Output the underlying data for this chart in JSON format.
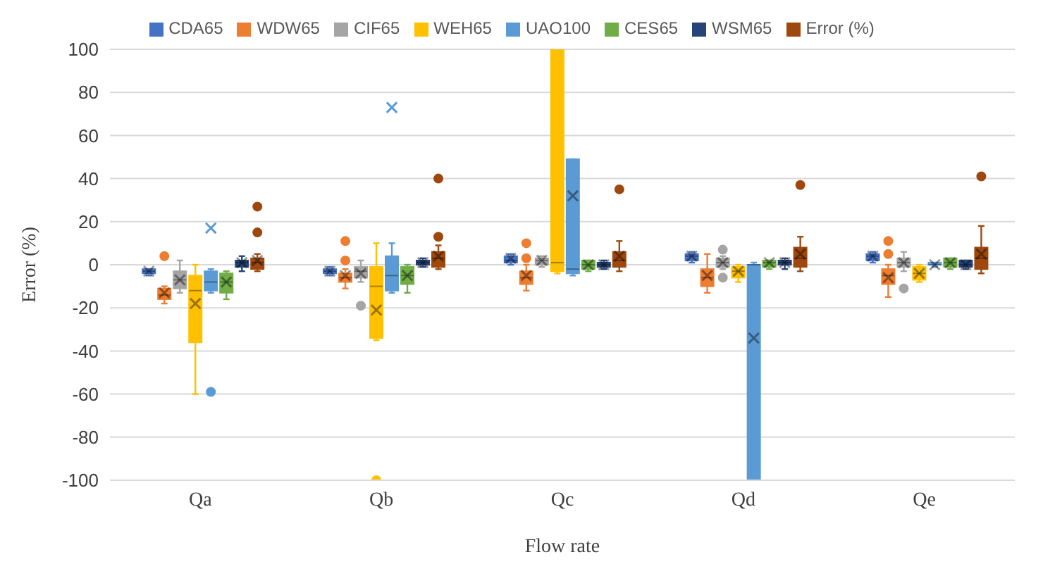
{
  "chart_data": {
    "type": "box",
    "xlabel": "Flow rate",
    "ylabel": "Error (%)",
    "categories": [
      "Qa",
      "Qb",
      "Qc",
      "Qd",
      "Qe"
    ],
    "ylim": [
      -100,
      100
    ],
    "yticks": [
      -100,
      -80,
      -60,
      -40,
      -20,
      0,
      20,
      40,
      60,
      80,
      100
    ],
    "grid": "y",
    "legend": "top",
    "series": [
      {
        "name": "CDA65",
        "color": "#4472c4",
        "boxes": [
          {
            "low": -5,
            "q1": -4,
            "median": -3,
            "q3": -2,
            "high": -2,
            "mean": -3
          },
          {
            "low": -5,
            "q1": -4,
            "median": -3,
            "q3": -2,
            "high": -1,
            "mean": -3
          },
          {
            "low": 0,
            "q1": 1,
            "median": 2,
            "q3": 4,
            "high": 5,
            "mean": 3
          },
          {
            "low": 1,
            "q1": 2,
            "median": 4,
            "q3": 5,
            "high": 6,
            "mean": 4
          },
          {
            "low": 1,
            "q1": 2,
            "median": 4,
            "q3": 5,
            "high": 6,
            "mean": 4
          }
        ]
      },
      {
        "name": "WDW65",
        "color": "#ed7d31",
        "boxes": [
          {
            "low": -18,
            "q1": -16,
            "median": -14,
            "q3": -11,
            "high": -10,
            "mean": -13,
            "outliers": [
              4
            ]
          },
          {
            "low": -11,
            "q1": -8,
            "median": -6,
            "q3": -4,
            "high": -2,
            "mean": -5,
            "outliers": [
              2,
              11
            ]
          },
          {
            "low": -12,
            "q1": -9,
            "median": -6,
            "q3": -3,
            "high": 0,
            "mean": -5,
            "outliers": [
              3,
              10
            ]
          },
          {
            "low": -13,
            "q1": -10,
            "median": -6,
            "q3": -2,
            "high": 5,
            "mean": -5
          },
          {
            "low": -15,
            "q1": -9,
            "median": -5,
            "q3": -2,
            "high": 0,
            "mean": -6,
            "outliers": [
              5,
              11
            ]
          }
        ]
      },
      {
        "name": "CIF65",
        "color": "#a5a5a5",
        "boxes": [
          {
            "low": -13,
            "q1": -11,
            "median": -7,
            "q3": -3,
            "high": 2,
            "mean": -7
          },
          {
            "low": -8,
            "q1": -6,
            "median": -3,
            "q3": -1,
            "high": 2,
            "mean": -4,
            "outliers": [
              -19
            ]
          },
          {
            "low": -1,
            "q1": 0,
            "median": 2,
            "q3": 3,
            "high": 4,
            "mean": 2
          },
          {
            "low": -2,
            "q1": -1,
            "median": 1,
            "q3": 3,
            "high": 4,
            "mean": 1,
            "outliers": [
              -6,
              7
            ]
          },
          {
            "low": -3,
            "q1": -1,
            "median": 1,
            "q3": 3,
            "high": 6,
            "mean": 1,
            "outliers": [
              -11
            ]
          }
        ]
      },
      {
        "name": "WEH65",
        "color": "#ffc000",
        "boxes": [
          {
            "low": -60,
            "q1": -36,
            "median": -12,
            "q3": -5,
            "high": 0,
            "mean": -18
          },
          {
            "low": -35,
            "q1": -34,
            "median": -10,
            "q3": -1,
            "high": 10,
            "mean": -21,
            "outliers": [
              -100
            ]
          },
          {
            "low": -4,
            "q1": -3,
            "median": 1,
            "q3": 100,
            "high": 100
          },
          {
            "low": -8,
            "q1": -6,
            "median": -3,
            "q3": -1,
            "high": 0,
            "mean": -3
          },
          {
            "low": -8,
            "q1": -7,
            "median": -4,
            "q3": -1,
            "high": 0,
            "mean": -4
          }
        ]
      },
      {
        "name": "UAO100",
        "color": "#5b9bd5",
        "boxes": [
          {
            "low": -13,
            "q1": -12,
            "median": -8,
            "q3": -3,
            "high": -2,
            "mean": 17,
            "outliers": [
              -59
            ]
          },
          {
            "low": -13,
            "q1": -12,
            "median": -5,
            "q3": 4,
            "high": 10,
            "mean": 73
          },
          {
            "low": -5,
            "q1": -4,
            "median": -2,
            "q3": 49,
            "high": 49,
            "mean": 32
          },
          {
            "low": -100,
            "q1": -100,
            "median": 0,
            "q3": 0,
            "high": 1,
            "mean": -34
          },
          {
            "low": -1,
            "q1": 0,
            "median": 0,
            "q3": 1,
            "high": 1,
            "mean": 0
          }
        ]
      },
      {
        "name": "CES65",
        "color": "#70ad47",
        "boxes": [
          {
            "low": -16,
            "q1": -13,
            "median": -8,
            "q3": -4,
            "high": -3,
            "mean": -8
          },
          {
            "low": -13,
            "q1": -9,
            "median": -5,
            "q3": -1,
            "high": 0,
            "mean": -5
          },
          {
            "low": -3,
            "q1": -2,
            "median": 0,
            "q3": 2,
            "high": 2,
            "mean": 0
          },
          {
            "low": -2,
            "q1": -1,
            "median": 1,
            "q3": 2,
            "high": 2,
            "mean": 1
          },
          {
            "low": -2,
            "q1": -1,
            "median": 1,
            "q3": 3,
            "high": 3,
            "mean": 1
          }
        ]
      },
      {
        "name": "WSM65",
        "color": "#264478",
        "boxes": [
          {
            "low": -3,
            "q1": -1,
            "median": 1,
            "q3": 2,
            "high": 4,
            "mean": 1
          },
          {
            "low": -1,
            "q1": 0,
            "median": 1,
            "q3": 2,
            "high": 3,
            "mean": 1
          },
          {
            "low": -2,
            "q1": -1,
            "median": 0,
            "q3": 1,
            "high": 2,
            "mean": 0
          },
          {
            "low": -2,
            "q1": 0,
            "median": 1,
            "q3": 2,
            "high": 3,
            "mean": 1
          },
          {
            "low": -2,
            "q1": -1,
            "median": 0,
            "q3": 2,
            "high": 2,
            "mean": 0
          }
        ]
      },
      {
        "name": "Error (%)",
        "color": "#9e480e",
        "boxes": [
          {
            "low": -3,
            "q1": -2,
            "median": 1,
            "q3": 3,
            "high": 5,
            "mean": 2,
            "outliers": [
              15,
              27
            ]
          },
          {
            "low": -2,
            "q1": -1,
            "median": 3,
            "q3": 6,
            "high": 9,
            "mean": 4,
            "outliers": [
              13,
              40
            ]
          },
          {
            "low": -3,
            "q1": -1,
            "median": 2,
            "q3": 6,
            "high": 11,
            "mean": 4,
            "outliers": [
              35
            ]
          },
          {
            "low": -3,
            "q1": -1,
            "median": 3,
            "q3": 8,
            "high": 13,
            "mean": 5,
            "outliers": [
              37
            ]
          },
          {
            "low": -4,
            "q1": -2,
            "median": 3,
            "q3": 8,
            "high": 18,
            "mean": 5,
            "outliers": [
              41
            ]
          }
        ]
      }
    ]
  }
}
